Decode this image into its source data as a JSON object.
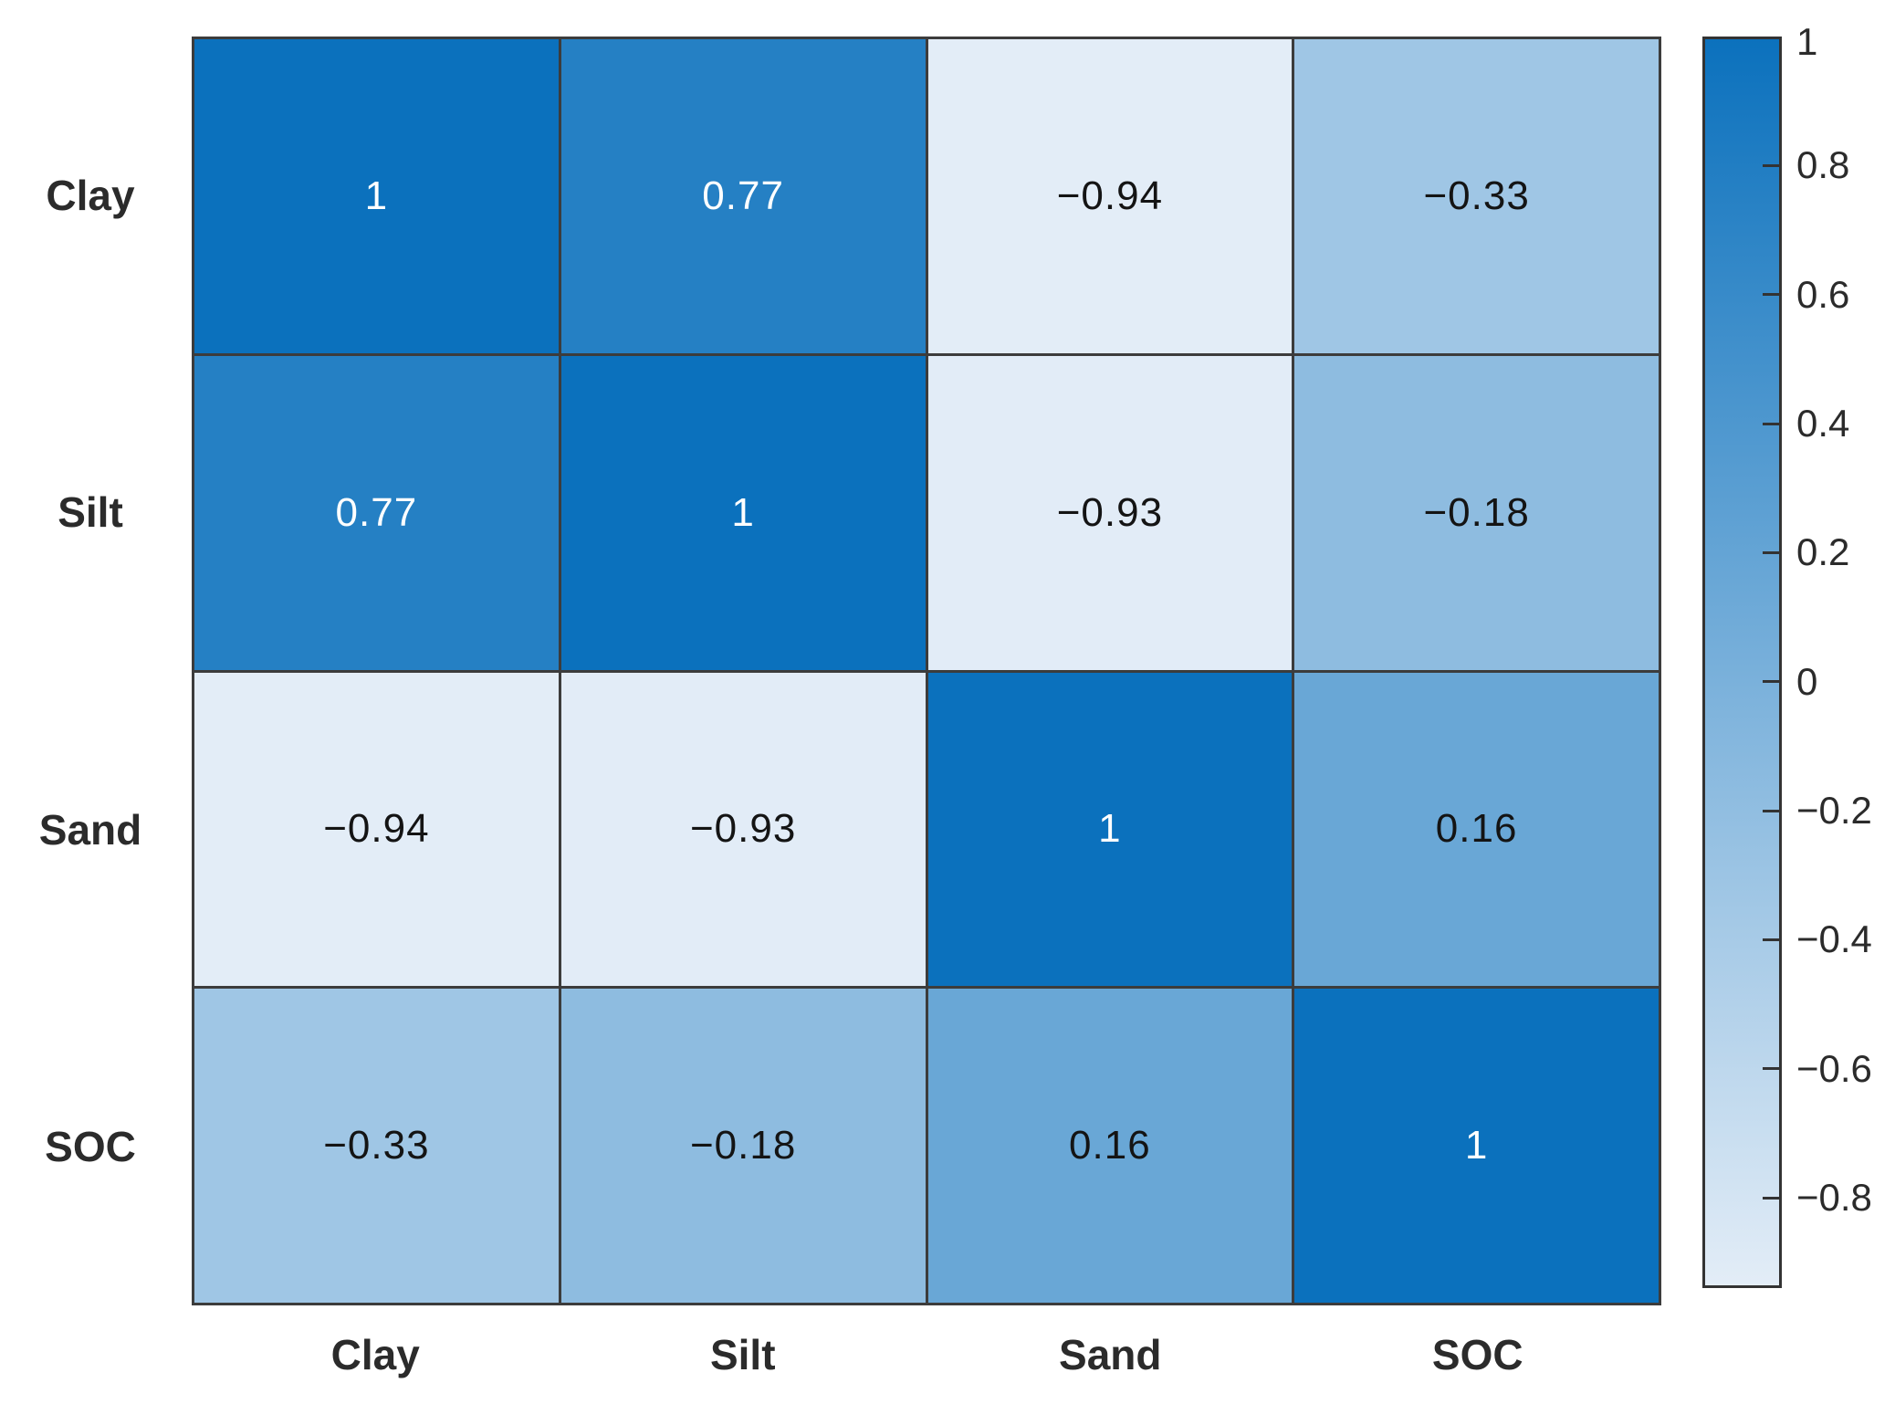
{
  "chart_data": {
    "type": "heatmap",
    "title": "",
    "x_categories": [
      "Clay",
      "Silt",
      "Sand",
      "SOC"
    ],
    "y_categories": [
      "Clay",
      "Silt",
      "Sand",
      "SOC"
    ],
    "matrix": [
      [
        1,
        0.77,
        -0.94,
        -0.33
      ],
      [
        0.77,
        1,
        -0.93,
        -0.18
      ],
      [
        -0.94,
        -0.93,
        1,
        0.16
      ],
      [
        -0.33,
        -0.18,
        0.16,
        1
      ]
    ],
    "value_labels_shown": true,
    "grid": true,
    "legend_position": "right-colorbar",
    "color_scale": {
      "vmin": -0.94,
      "vmax": 1,
      "min_color": "#e3edf7",
      "max_color": "#0b71bd"
    },
    "colorbar": {
      "tick_values": [
        1,
        0.8,
        0.6,
        0.4,
        0.2,
        0,
        -0.2,
        -0.4,
        -0.6,
        -0.8
      ]
    }
  },
  "colors": {
    "background": "#ffffff",
    "grid_line": "#3c3c3c",
    "colorbar_border": "#333333",
    "tick_mark": "#333333",
    "axis_label_text": "#2b2b2b",
    "tick_label_text": "#2b2b2b",
    "cell_text_dark": "#141414",
    "cell_text_light": "#ffffff"
  }
}
